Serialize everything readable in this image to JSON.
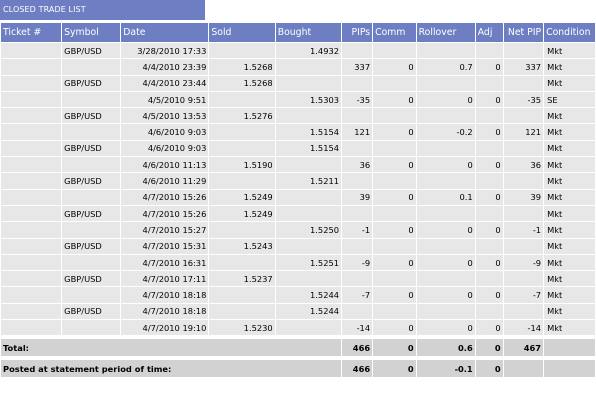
{
  "title": "CLOSED TRADE LIST",
  "columns": [
    "Ticket #",
    "Symbol",
    "Date",
    "Sold",
    "Bought",
    "PIPs",
    "Comm",
    "Rollover",
    "Adj",
    "Net PIP",
    "Condition"
  ],
  "rows": [
    [
      "",
      "GBP/USD",
      "3/28/2010 17:33",
      "",
      "1.4932",
      "",
      "",
      "",
      "",
      "",
      "Mkt"
    ],
    [
      "",
      "",
      "4/4/2010 23:39",
      "1.5268",
      "",
      "337",
      "0",
      "0.7",
      "0",
      "337",
      "Mkt"
    ],
    [
      "",
      "GBP/USD",
      "4/4/2010 23:44",
      "1.5268",
      "",
      "",
      "",
      "",
      "",
      "",
      "Mkt"
    ],
    [
      "",
      "",
      "4/5/2010 9:51",
      "",
      "1.5303",
      "-35",
      "0",
      "0",
      "0",
      "-35",
      "SE"
    ],
    [
      "",
      "GBP/USD",
      "4/5/2010 13:53",
      "1.5276",
      "",
      "",
      "",
      "",
      "",
      "",
      "Mkt"
    ],
    [
      "",
      "",
      "4/6/2010 9:03",
      "",
      "1.5154",
      "121",
      "0",
      "-0.2",
      "0",
      "121",
      "Mkt"
    ],
    [
      "",
      "GBP/USD",
      "4/6/2010 9:03",
      "",
      "1.5154",
      "",
      "",
      "",
      "",
      "",
      "Mkt"
    ],
    [
      "",
      "",
      "4/6/2010 11:13",
      "1.5190",
      "",
      "36",
      "0",
      "0",
      "0",
      "36",
      "Mkt"
    ],
    [
      "",
      "GBP/USD",
      "4/6/2010 11:29",
      "",
      "1.5211",
      "",
      "",
      "",
      "",
      "",
      "Mkt"
    ],
    [
      "",
      "",
      "4/7/2010 15:26",
      "1.5249",
      "",
      "39",
      "0",
      "0.1",
      "0",
      "39",
      "Mkt"
    ],
    [
      "",
      "GBP/USD",
      "4/7/2010 15:26",
      "1.5249",
      "",
      "",
      "",
      "",
      "",
      "",
      "Mkt"
    ],
    [
      "",
      "",
      "4/7/2010 15:27",
      "",
      "1.5250",
      "-1",
      "0",
      "0",
      "0",
      "-1",
      "Mkt"
    ],
    [
      "",
      "GBP/USD",
      "4/7/2010 15:31",
      "1.5243",
      "",
      "",
      "",
      "",
      "",
      "",
      "Mkt"
    ],
    [
      "",
      "",
      "4/7/2010 16:31",
      "",
      "1.5251",
      "-9",
      "0",
      "0",
      "0",
      "-9",
      "Mkt"
    ],
    [
      "",
      "GBP/USD",
      "4/7/2010 17:11",
      "1.5237",
      "",
      "",
      "",
      "",
      "",
      "",
      "Mkt"
    ],
    [
      "",
      "",
      "4/7/2010 18:18",
      "",
      "1.5244",
      "-7",
      "0",
      "0",
      "0",
      "-7",
      "Mkt"
    ],
    [
      "",
      "GBP/USD",
      "4/7/2010 18:18",
      "",
      "1.5244",
      "",
      "",
      "",
      "",
      "",
      "Mkt"
    ],
    [
      "",
      "",
      "4/7/2010 19:10",
      "1.5230",
      "",
      "-14",
      "0",
      "0",
      "0",
      "-14",
      "Mkt"
    ]
  ],
  "total": {
    "label": "Total:",
    "pips": "466",
    "comm": "0",
    "rollover": "0.6",
    "adj": "0",
    "net_pip": "467"
  },
  "posted": {
    "label": "Posted at statement period of time:",
    "pips": "466",
    "comm": "0",
    "rollover": "-0.1",
    "adj": "0"
  },
  "colors": {
    "header_bg": "#6d7ec2",
    "row_bg": "#e7e7e7",
    "total_bg": "#d2d2d2"
  }
}
